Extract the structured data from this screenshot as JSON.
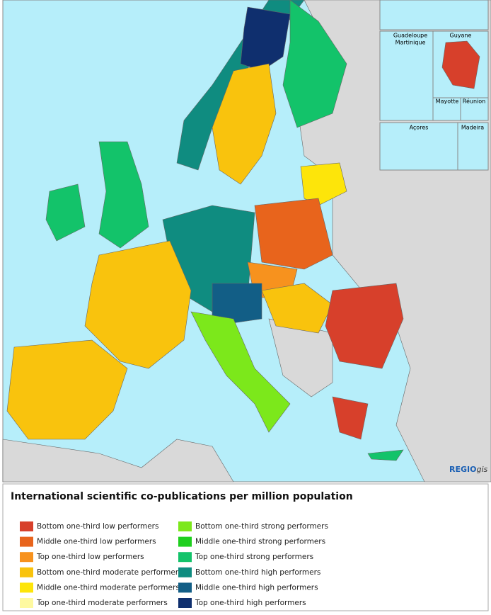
{
  "map": {
    "insets": [
      {
        "label": [
          "Guadeloupe",
          "Martinique"
        ]
      },
      {
        "label": [
          "Guyane"
        ]
      },
      {
        "label": [
          "Mayotte"
        ]
      },
      {
        "label": [
          "Réunion"
        ]
      },
      {
        "label": [
          "Açores"
        ]
      },
      {
        "label": [
          "Madeira"
        ]
      }
    ],
    "credit": {
      "brand": "REGIO",
      "suffix": "gis"
    }
  },
  "legend": {
    "title": "International scientific co-publications per million population",
    "items": [
      {
        "label": "Bottom one-third low performers",
        "color": "#d7402b"
      },
      {
        "label": "Middle one-third low performers",
        "color": "#e8641c"
      },
      {
        "label": "Top one-third low performers",
        "color": "#f7921e"
      },
      {
        "label": "Bottom one-third moderate performers",
        "color": "#f9c30d"
      },
      {
        "label": "Middle one-third moderate performers",
        "color": "#fde50a"
      },
      {
        "label": "Top one-third moderate performers",
        "color": "#fef9a0"
      },
      {
        "label": "Bottom one-third strong performers",
        "color": "#7ce81b"
      },
      {
        "label": "Middle one-third strong performers",
        "color": "#1fcf1f"
      },
      {
        "label": "Top one-third strong performers",
        "color": "#13c36a"
      },
      {
        "label": "Bottom one-third high performers",
        "color": "#0f8c80"
      },
      {
        "label": "Middle one-third high performers",
        "color": "#125e86"
      },
      {
        "label": "Top one-third high performers",
        "color": "#0f2f6e"
      }
    ]
  }
}
